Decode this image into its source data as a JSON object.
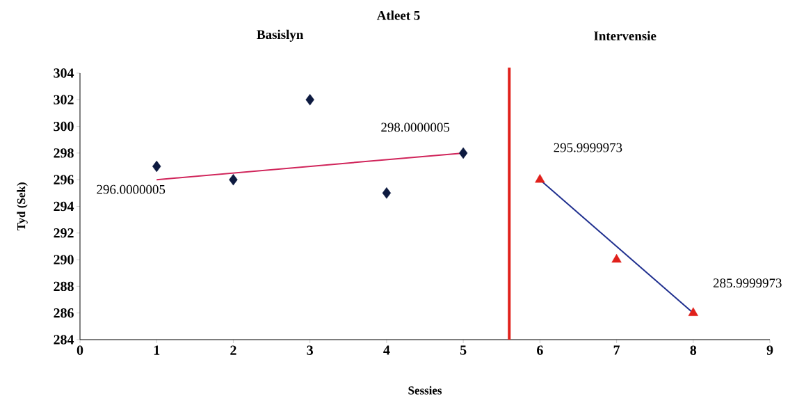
{
  "chart_data": {
    "type": "scatter",
    "title": "Atleet 5",
    "xlabel": "Sessies",
    "ylabel": "Tyd (Sek)",
    "xlim": [
      0,
      9
    ],
    "xticks": [
      0,
      1,
      2,
      3,
      4,
      5,
      6,
      7,
      8,
      9
    ],
    "ylim": [
      284,
      304
    ],
    "yticks": [
      284,
      286,
      288,
      290,
      292,
      294,
      296,
      298,
      300,
      302,
      304
    ],
    "series": [
      {
        "marker": "diamond",
        "color": "#0d1a40",
        "x": [
          1,
          2,
          3,
          4,
          5
        ],
        "values": [
          297,
          296,
          302,
          295,
          298
        ]
      },
      {
        "marker": "triangle",
        "color": "#e0201b",
        "x": [
          6,
          7,
          8
        ],
        "values": [
          296,
          290,
          286
        ]
      },
      {
        "type": "line",
        "marker": "none",
        "line_style": "solid",
        "color": "#d0245a",
        "x": [
          1,
          5
        ],
        "values": [
          296,
          298
        ]
      },
      {
        "type": "line",
        "marker": "none",
        "line_style": "solid",
        "color": "#1f2f8f",
        "x": [
          6,
          8
        ],
        "values": [
          296,
          286
        ]
      }
    ],
    "ref_lines": [
      {
        "axis": "x",
        "value": 5.6,
        "color": "#e0201b"
      }
    ],
    "annotations": [
      "Basislyn",
      "Intervensie",
      {
        "text": "296.0000005",
        "x": 1,
        "y": 296
      },
      {
        "text": "298.0000005",
        "x": 5,
        "y": 298
      },
      {
        "text": "295.9999973",
        "x": 6,
        "y": 296
      },
      {
        "text": "285.9999973",
        "x": 8,
        "y": 286
      }
    ]
  }
}
